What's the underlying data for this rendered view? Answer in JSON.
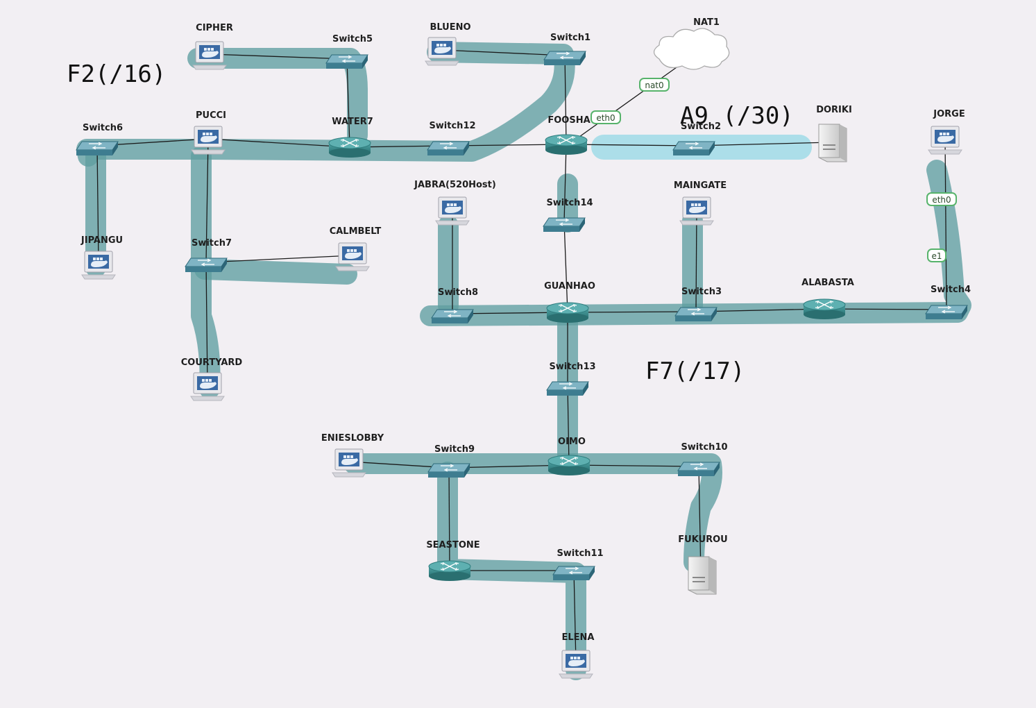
{
  "colors": {
    "highlight_teal": "#5f9ea0",
    "highlight_cyan": "#9ad9e6",
    "device_teal": "#3f8f90",
    "link": "#1a1a1a",
    "iface_border": "#57b36b"
  },
  "nodes": {
    "cipher": {
      "label": "CIPHER",
      "type": "pc",
      "icon": "docker-pc-icon"
    },
    "switch5": {
      "label": "Switch5",
      "type": "switch",
      "icon": "switch-icon"
    },
    "blueno": {
      "label": "BLUENO",
      "type": "pc",
      "icon": "docker-pc-icon"
    },
    "switch1": {
      "label": "Switch1",
      "type": "switch",
      "icon": "switch-icon"
    },
    "nat1": {
      "label": "NAT1",
      "type": "cloud",
      "icon": "cloud-icon"
    },
    "switch6": {
      "label": "Switch6",
      "type": "switch",
      "icon": "switch-icon"
    },
    "pucci": {
      "label": "PUCCI",
      "type": "pc",
      "icon": "docker-pc-icon"
    },
    "water7": {
      "label": "WATER7",
      "type": "router",
      "icon": "router-icon"
    },
    "switch12": {
      "label": "Switch12",
      "type": "switch",
      "icon": "switch-icon"
    },
    "foosha": {
      "label": "FOOSHA",
      "type": "router",
      "icon": "router-icon"
    },
    "switch2": {
      "label": "Switch2",
      "type": "switch",
      "icon": "switch-icon"
    },
    "doriki": {
      "label": "DORIKI",
      "type": "server",
      "icon": "server-icon"
    },
    "jorge": {
      "label": "JORGE",
      "type": "pc",
      "icon": "docker-pc-icon"
    },
    "jipangu": {
      "label": "JIPANGU",
      "type": "pc",
      "icon": "docker-pc-icon"
    },
    "switch7": {
      "label": "Switch7",
      "type": "switch",
      "icon": "switch-icon"
    },
    "calmbelt": {
      "label": "CALMBELT",
      "type": "pc",
      "icon": "docker-pc-icon"
    },
    "jabra": {
      "label": "JABRA(520Host)",
      "type": "pc",
      "icon": "docker-pc-icon"
    },
    "switch14": {
      "label": "Switch14",
      "type": "switch",
      "icon": "switch-icon"
    },
    "maingate": {
      "label": "MAINGATE",
      "type": "pc",
      "icon": "docker-pc-icon"
    },
    "switch8": {
      "label": "Switch8",
      "type": "switch",
      "icon": "switch-icon"
    },
    "guanhao": {
      "label": "GUANHAO",
      "type": "router",
      "icon": "router-icon"
    },
    "switch3": {
      "label": "Switch3",
      "type": "switch",
      "icon": "switch-icon"
    },
    "alabasta": {
      "label": "ALABASTA",
      "type": "router",
      "icon": "router-icon"
    },
    "switch4": {
      "label": "Switch4",
      "type": "switch",
      "icon": "switch-icon"
    },
    "courtyard": {
      "label": "COURTYARD",
      "type": "pc",
      "icon": "docker-pc-icon"
    },
    "switch13": {
      "label": "Switch13",
      "type": "switch",
      "icon": "switch-icon"
    },
    "enieslobby": {
      "label": "ENIESLOBBY",
      "type": "pc",
      "icon": "docker-pc-icon"
    },
    "switch9": {
      "label": "Switch9",
      "type": "switch",
      "icon": "switch-icon"
    },
    "oimo": {
      "label": "OIMO",
      "type": "router",
      "icon": "router-icon"
    },
    "switch10": {
      "label": "Switch10",
      "type": "switch",
      "icon": "switch-icon"
    },
    "fukurou": {
      "label": "FUKUROU",
      "type": "server",
      "icon": "server-icon"
    },
    "seastone": {
      "label": "SEASTONE",
      "type": "router",
      "icon": "router-icon"
    },
    "switch11": {
      "label": "Switch11",
      "type": "switch",
      "icon": "switch-icon"
    },
    "elena": {
      "label": "ELENA",
      "type": "pc",
      "icon": "docker-pc-icon"
    }
  },
  "interfaces": {
    "nat0": "nat0",
    "eth0_foosha": "eth0",
    "eth0_jorge": "eth0",
    "e1_jorge": "e1"
  },
  "annotations": {
    "f2": "F2(/16)",
    "a9": "A9 (/30)",
    "f7": "F7(/17)"
  }
}
